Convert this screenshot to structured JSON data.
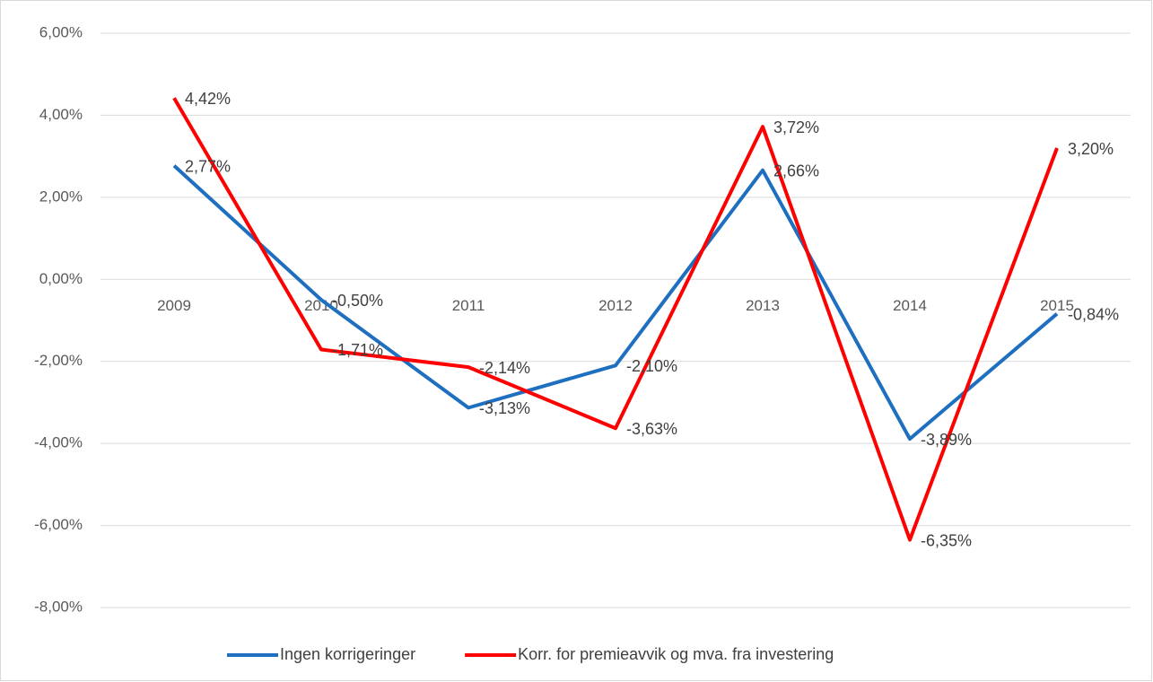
{
  "chart_data": {
    "type": "line",
    "categories": [
      "2009",
      "2010",
      "2011",
      "2012",
      "2013",
      "2014",
      "2015"
    ],
    "series": [
      {
        "name": "Ingen korrigeringer",
        "color": "#1f6fc0",
        "values": [
          2.77,
          -0.5,
          -3.13,
          -2.1,
          2.66,
          -3.89,
          -0.84
        ],
        "value_labels": [
          "2,77%",
          "-0,50%",
          "-3,13%",
          "-2,10%",
          "2,66%",
          "-3,89%",
          "-0,84%"
        ]
      },
      {
        "name": "Korr. for premieavvik og mva. fra investering",
        "color": "#ff0000",
        "values": [
          4.42,
          -1.71,
          -2.14,
          -3.63,
          3.72,
          -6.35,
          3.2
        ],
        "value_labels": [
          "4,42%",
          "-1,71%",
          "-2,14%",
          "-3,63%",
          "3,72%",
          "-6,35%",
          "3,20%"
        ]
      }
    ],
    "ylim": [
      -8,
      6
    ],
    "yticks": [
      {
        "value": -8,
        "label": "-8,00%"
      },
      {
        "value": -6,
        "label": "-6,00%"
      },
      {
        "value": -4,
        "label": "-4,00%"
      },
      {
        "value": -2,
        "label": "-2,00%"
      },
      {
        "value": 0,
        "label": "0,00%"
      },
      {
        "value": 2,
        "label": "2,00%"
      },
      {
        "value": 4,
        "label": "4,00%"
      },
      {
        "value": 6,
        "label": "6,00%"
      }
    ],
    "grid": true,
    "legend": "bottom"
  }
}
